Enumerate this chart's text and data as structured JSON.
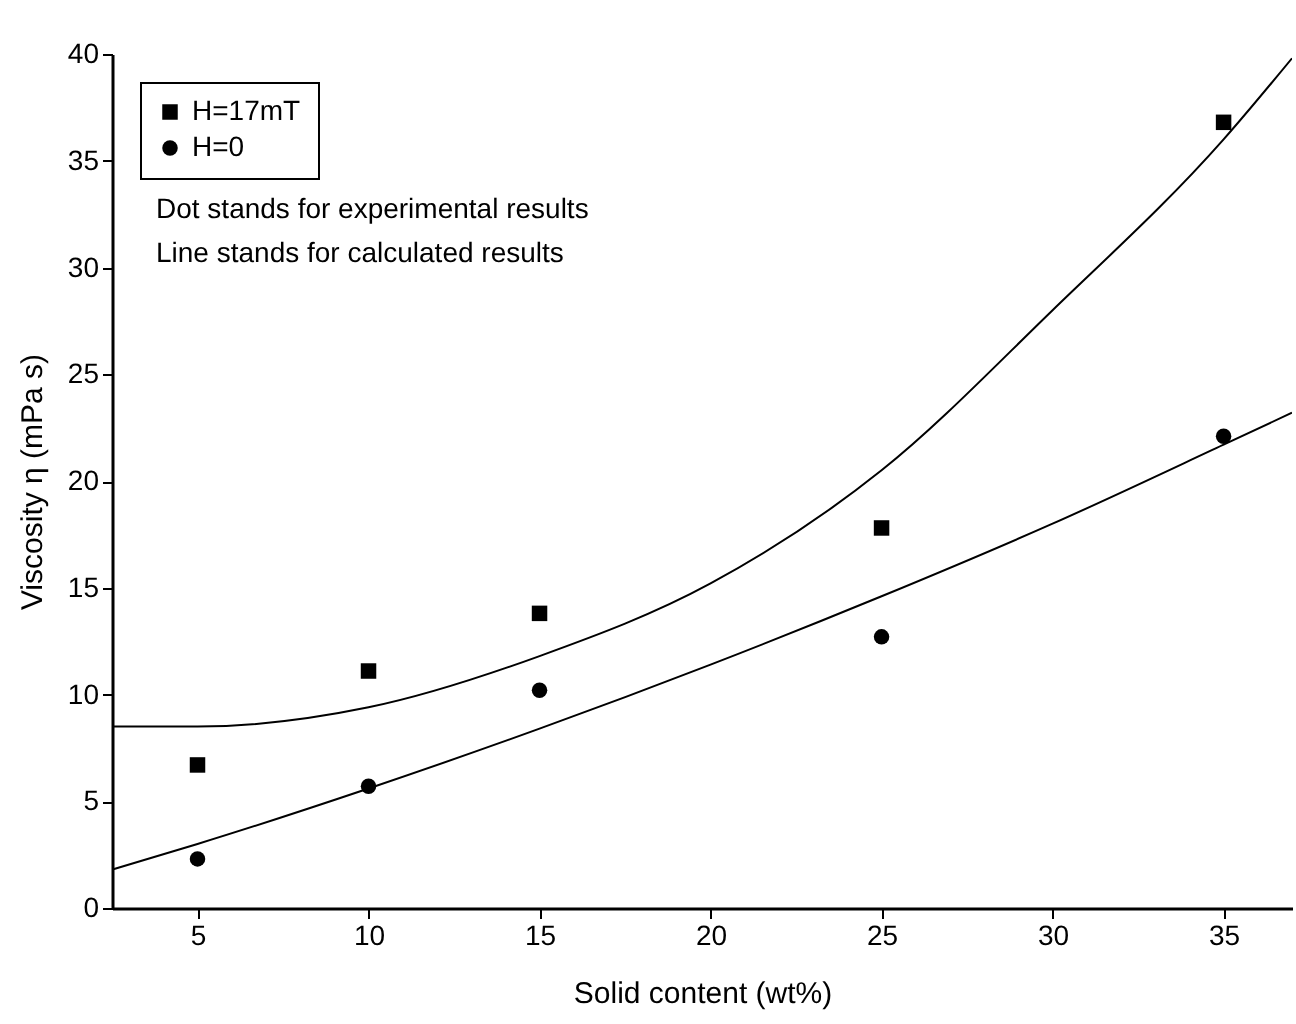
{
  "chart_data": {
    "type": "scatter",
    "xlabel": "Solid content (wt%)",
    "ylabel": "Viscosity η (mPa s)",
    "xlim": [
      2.5,
      37
    ],
    "xticks": [
      5,
      10,
      15,
      20,
      25,
      30,
      35
    ],
    "ylim": [
      0,
      40
    ],
    "yticks": [
      0,
      5,
      10,
      15,
      20,
      25,
      30,
      35,
      40
    ],
    "grid": false,
    "legend": "top left",
    "annotations": [
      "Dot stands for experimental results",
      "Line stands for calculated results"
    ],
    "series": [
      {
        "name": "H=17mT",
        "marker": "square",
        "color": "#000000",
        "x": [
          5,
          10,
          15,
          25,
          35
        ],
        "values": [
          6.7,
          11.1,
          13.8,
          17.8,
          36.8
        ]
      },
      {
        "name": "H=0",
        "marker": "circle",
        "color": "#000000",
        "x": [
          5,
          10,
          15,
          25,
          35
        ],
        "values": [
          2.3,
          5.7,
          10.2,
          12.7,
          22.1
        ]
      },
      {
        "type": "line",
        "color": "#000000",
        "marker": "none",
        "x": [
          2.5,
          5,
          10,
          15,
          20,
          25,
          30,
          35,
          37
        ],
        "values": [
          8.5,
          8.5,
          9.4,
          11.8,
          15.2,
          20.5,
          28,
          36,
          39.8
        ]
      },
      {
        "type": "line",
        "color": "#000000",
        "marker": "none",
        "x": [
          2.5,
          5,
          10,
          15,
          20,
          25,
          30,
          35,
          37
        ],
        "values": [
          1.8,
          3,
          5.6,
          8.4,
          11.4,
          14.6,
          18,
          21.7,
          23.2
        ]
      }
    ]
  }
}
